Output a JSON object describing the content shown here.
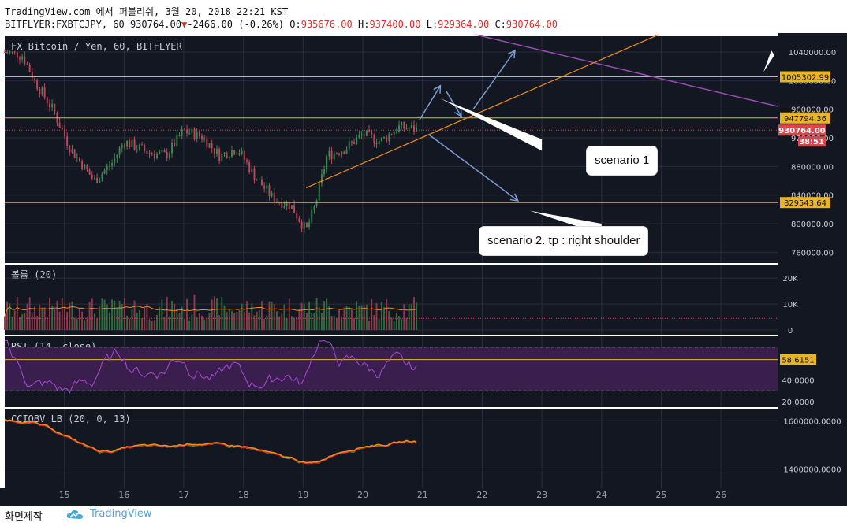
{
  "header": {
    "line1": "TradingView.com 에서 퍼블리쉬, 3월 20, 2018 22:21 KST",
    "symbol": "BITFLYER:FXBTCJPY, 60",
    "last": "930764.00",
    "change": "-2466.00 (-0.26%)",
    "o_label": "O:",
    "o": "935676.00",
    "h_label": "H:",
    "h": "937400.00",
    "l_label": "L:",
    "l": "929364.00",
    "c_label": "C:",
    "c": "930764.00"
  },
  "footer": {
    "made": "화면제작",
    "brand": "TradingView"
  },
  "colors": {
    "bg": "#131722",
    "grid": "#2a2e39",
    "up": "#3d8a4e",
    "down": "#c0475b",
    "hline": "#e8b52a",
    "trend": "#f08b1c",
    "purple": "#9b4bb5",
    "arrow": "#7d9bd1"
  },
  "callouts": {
    "s1": "scenario 1",
    "s2": "scenario 2. tp : right shoulder"
  },
  "chart_data": {
    "type": "candlestick",
    "price_pane": {
      "title": "FX Bitcoin / Yen, 60, BITFLYER",
      "y_ticks": [
        760000,
        800000,
        840000,
        880000,
        920000,
        960000,
        1000000,
        1040000
      ],
      "y_tick_labels": [
        "760000.00",
        "800000.00",
        "840000.00",
        "880000.00",
        "920000.00",
        "960000.00",
        "1000000.00",
        "1040000.00"
      ],
      "ylim": [
        745000,
        1062000
      ],
      "horizontal_lines": [
        1005302.99,
        947794.36,
        829543.64
      ],
      "horizontal_labels": [
        "1005302.99",
        "947794.36",
        "829543.64"
      ],
      "last_price": 930764.0,
      "last_price_label": "930764.00",
      "countdown": "38:51",
      "trend_points": [
        {
          "day": 14.0,
          "price": 1040000
        },
        {
          "day": 14.3,
          "price": 1035000
        },
        {
          "day": 14.5,
          "price": 1000000
        },
        {
          "day": 14.8,
          "price": 960000
        },
        {
          "day": 15.1,
          "price": 905000
        },
        {
          "day": 15.5,
          "price": 860000
        },
        {
          "day": 15.8,
          "price": 885000
        },
        {
          "day": 16.0,
          "price": 915000
        },
        {
          "day": 16.4,
          "price": 900000
        },
        {
          "day": 16.7,
          "price": 895000
        },
        {
          "day": 17.0,
          "price": 930000
        },
        {
          "day": 17.3,
          "price": 922000
        },
        {
          "day": 17.6,
          "price": 895000
        },
        {
          "day": 17.9,
          "price": 905000
        },
        {
          "day": 18.2,
          "price": 865000
        },
        {
          "day": 18.5,
          "price": 835000
        },
        {
          "day": 18.8,
          "price": 825000
        },
        {
          "day": 19.05,
          "price": 790000
        },
        {
          "day": 19.2,
          "price": 825000
        },
        {
          "day": 19.4,
          "price": 895000
        },
        {
          "day": 19.7,
          "price": 905000
        },
        {
          "day": 20.0,
          "price": 925000
        },
        {
          "day": 20.3,
          "price": 915000
        },
        {
          "day": 20.6,
          "price": 935000
        },
        {
          "day": 20.9,
          "price": 932000
        }
      ]
    },
    "volume_pane": {
      "title": "볼륨 (20)",
      "y_tick_labels": [
        "20K",
        "10K",
        "0"
      ],
      "y_ticks": [
        20000,
        10000,
        0
      ]
    },
    "rsi_pane": {
      "title": "RSI (14, close)",
      "y_tick_labels": [
        "40.0000",
        "20.0000"
      ],
      "y_ticks": [
        40,
        20
      ],
      "last_label": "58.6151",
      "last": 58.6151
    },
    "cci_pane": {
      "title": "CCIOBV_LB (20, 0, 13)",
      "y_tick_labels": [
        "1600000.0000",
        "1400000.0000"
      ],
      "y_ticks": [
        1600000,
        1400000
      ]
    },
    "x_tick_labels": [
      "15",
      "16",
      "17",
      "18",
      "19",
      "20",
      "21",
      "22",
      "23",
      "24",
      "25",
      "26"
    ],
    "x_ticks": [
      15,
      16,
      17,
      18,
      19,
      20,
      21,
      22,
      23,
      24,
      25,
      26
    ],
    "xlim": [
      14.0,
      26.95
    ]
  }
}
